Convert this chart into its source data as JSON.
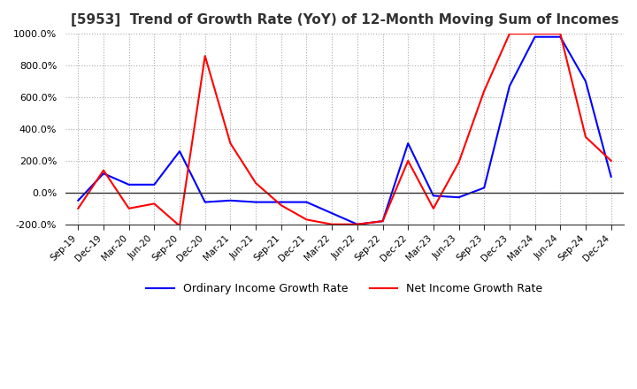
{
  "title": "[5953]  Trend of Growth Rate (YoY) of 12-Month Moving Sum of Incomes",
  "title_fontsize": 11,
  "ylim": [
    -200,
    1000
  ],
  "yticks": [
    -200,
    0,
    200,
    400,
    600,
    800,
    1000
  ],
  "ytick_labels": [
    "-200.0%",
    "0.0%",
    "200.0%",
    "400.0%",
    "600.0%",
    "800.0%",
    "1000.0%"
  ],
  "legend_labels": [
    "Ordinary Income Growth Rate",
    "Net Income Growth Rate"
  ],
  "legend_colors": [
    "#0000ff",
    "#ff0000"
  ],
  "x_labels": [
    "Sep-19",
    "Dec-19",
    "Mar-20",
    "Jun-20",
    "Sep-20",
    "Dec-20",
    "Mar-21",
    "Jun-21",
    "Sep-21",
    "Dec-21",
    "Mar-22",
    "Jun-22",
    "Sep-22",
    "Dec-22",
    "Mar-23",
    "Jun-23",
    "Sep-23",
    "Dec-23",
    "Mar-24",
    "Jun-24",
    "Sep-24",
    "Dec-24"
  ],
  "ordinary_income": [
    -50,
    120,
    50,
    50,
    260,
    -60,
    -50,
    -60,
    -60,
    -60,
    -130,
    -200,
    -180,
    310,
    -20,
    -30,
    30,
    670,
    980,
    980,
    700,
    100
  ],
  "net_income": [
    -100,
    140,
    -100,
    -70,
    -210,
    860,
    310,
    60,
    -80,
    -170,
    -200,
    -200,
    -180,
    200,
    -100,
    190,
    640,
    1000,
    1000,
    1000,
    350,
    200
  ],
  "line_width": 1.5,
  "grid_color": "#aaaaaa",
  "background_color": "#ffffff",
  "plot_bg_color": "#ffffff"
}
